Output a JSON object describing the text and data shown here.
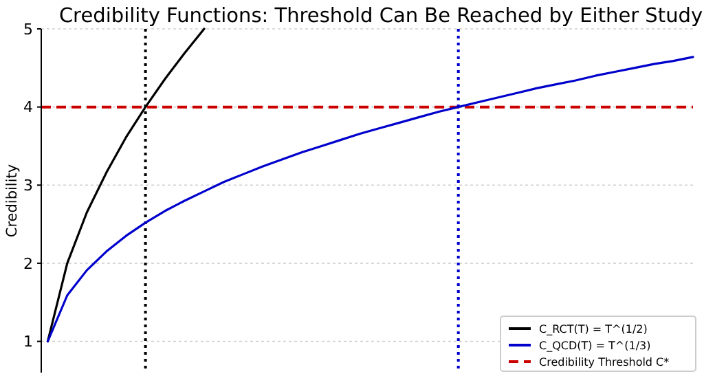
{
  "chart_data": {
    "type": "line",
    "title": "Credibility Functions: Threshold Can Be Reached by Either Study",
    "ylabel": "Credibility",
    "categories": [
      null,
      null,
      null,
      null,
      null,
      null,
      null,
      null,
      null,
      null,
      null,
      null,
      null,
      null,
      null,
      null,
      null,
      null,
      null,
      null,
      null,
      null,
      null,
      null,
      null,
      null,
      null,
      null,
      null,
      null,
      null,
      null,
      null,
      null
    ],
    "ylim": [
      0.6,
      5
    ],
    "yticks": [
      1,
      2,
      3,
      4,
      5
    ],
    "grid": "y",
    "legend": "bottom right",
    "tick_labels": "y",
    "line_style": "solid",
    "series": [
      {
        "name": "C_RCT(T) = T^(1/2)",
        "color": "#000000",
        "values": [
          1,
          2,
          2.65,
          3.16,
          3.61,
          4,
          4.36,
          4.69,
          5,
          null,
          null,
          null,
          null,
          null,
          null,
          null,
          null,
          null,
          null,
          null,
          null,
          null,
          null,
          null,
          null,
          null,
          null,
          null,
          null,
          null,
          null,
          null,
          null,
          null
        ]
      },
      {
        "name": "C_QCD(T) = T^(1/3)",
        "color": "#0000cc",
        "values": [
          1,
          1.59,
          1.91,
          2.15,
          2.35,
          2.52,
          2.67,
          2.8,
          2.92,
          3.04,
          3.14,
          3.24,
          3.33,
          3.42,
          3.5,
          3.58,
          3.66,
          3.73,
          3.8,
          3.87,
          3.94,
          4,
          4.06,
          4.12,
          4.18,
          4.24,
          4.29,
          4.34,
          4.4,
          4.45,
          4.5,
          4.55,
          4.59,
          4.64
        ]
      }
    ],
    "ref_lines": [
      {
        "axis": "y",
        "value": 4,
        "label": "Credibility Threshold C*",
        "color": "#cc0000",
        "line_style": "dashed"
      }
    ]
  }
}
